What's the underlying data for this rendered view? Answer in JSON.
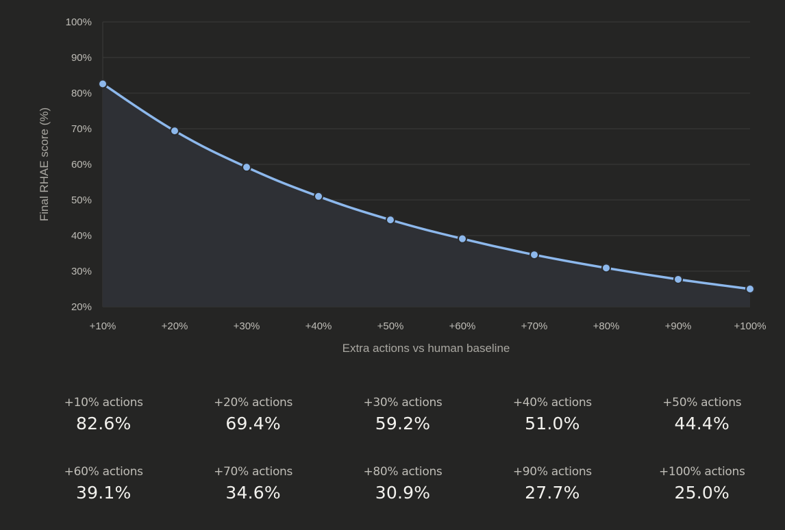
{
  "chart_data": {
    "type": "area",
    "title": "",
    "xlabel": "Extra actions vs human baseline",
    "ylabel": "Final RHAE score (%)",
    "categories": [
      "+10%",
      "+20%",
      "+30%",
      "+40%",
      "+50%",
      "+60%",
      "+70%",
      "+80%",
      "+90%",
      "+100%"
    ],
    "series": [
      {
        "name": "Final RHAE score",
        "values": [
          82.6,
          69.4,
          59.2,
          51.0,
          44.4,
          39.1,
          34.6,
          30.9,
          27.7,
          25.0
        ]
      }
    ],
    "ylim": [
      20,
      100
    ],
    "yticks": [
      20,
      30,
      40,
      50,
      60,
      70,
      80,
      90,
      100
    ],
    "ytick_labels": [
      "20%",
      "30%",
      "40%",
      "50%",
      "60%",
      "70%",
      "80%",
      "90%",
      "100%"
    ],
    "grid": true,
    "legend": "none"
  },
  "colors": {
    "background": "#252524",
    "line": "#8db8ec",
    "area_fill": "#2e3035",
    "grid": "#3b3b3a",
    "marker_edge": "#2a2b2d"
  },
  "summary": [
    {
      "label": "+10% actions",
      "value": "82.6%"
    },
    {
      "label": "+20% actions",
      "value": "69.4%"
    },
    {
      "label": "+30% actions",
      "value": "59.2%"
    },
    {
      "label": "+40% actions",
      "value": "51.0%"
    },
    {
      "label": "+50% actions",
      "value": "44.4%"
    },
    {
      "label": "+60% actions",
      "value": "39.1%"
    },
    {
      "label": "+70% actions",
      "value": "34.6%"
    },
    {
      "label": "+80% actions",
      "value": "30.9%"
    },
    {
      "label": "+90% actions",
      "value": "27.7%"
    },
    {
      "label": "+100% actions",
      "value": "25.0%"
    }
  ]
}
